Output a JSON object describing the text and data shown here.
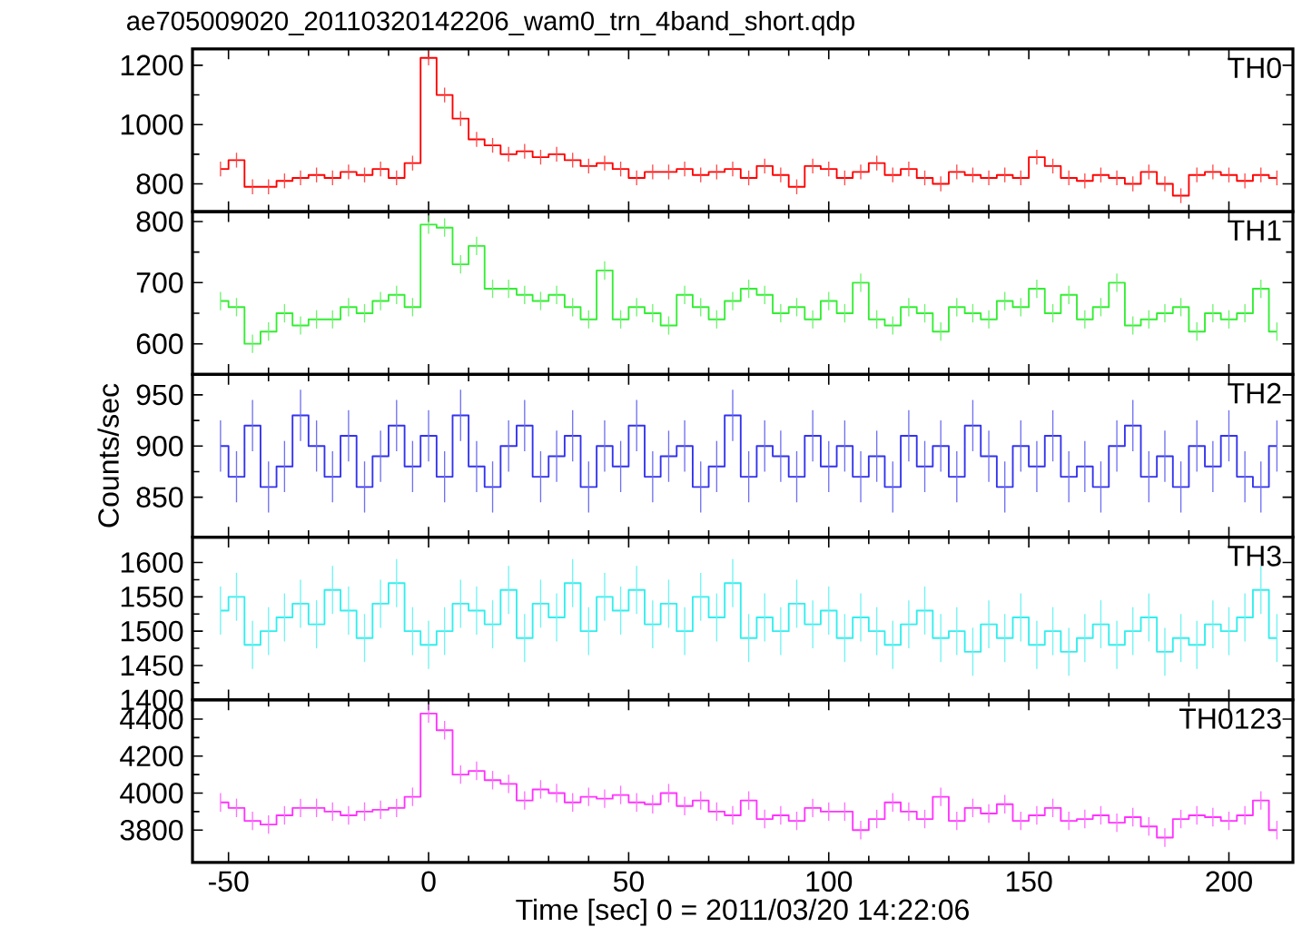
{
  "chart_data": [
    {
      "type": "step",
      "title": "ae705009020_20110320142206_wam0_trn_4band_short.qdp",
      "x": [
        -52,
        -48,
        -44,
        -40,
        -36,
        -32,
        -28,
        -24,
        -20,
        -16,
        -12,
        -8,
        -4,
        0,
        4,
        8,
        12,
        16,
        20,
        24,
        28,
        32,
        36,
        40,
        44,
        48,
        52,
        56,
        60,
        64,
        68,
        72,
        76,
        80,
        84,
        88,
        92,
        96,
        100,
        104,
        108,
        112,
        116,
        120,
        124,
        128,
        132,
        136,
        140,
        144,
        148,
        152,
        156,
        160,
        164,
        168,
        172,
        176,
        180,
        184,
        188,
        192,
        196,
        200,
        204,
        208,
        212
      ],
      "xlim": [
        -59,
        216
      ],
      "xticks": [
        -50,
        0,
        50,
        100,
        150,
        200
      ],
      "ylim": [
        706,
        1255
      ],
      "yticks": [
        800,
        1000,
        1200
      ],
      "tick_labels": "y",
      "series": [
        {
          "name": "TH0",
          "color": "#ff0000",
          "values": [
            850,
            880,
            790,
            790,
            810,
            820,
            830,
            820,
            840,
            830,
            850,
            820,
            870,
            1225,
            1100,
            1020,
            950,
            930,
            900,
            910,
            890,
            900,
            880,
            860,
            870,
            850,
            820,
            840,
            840,
            850,
            830,
            840,
            850,
            820,
            860,
            830,
            790,
            860,
            850,
            820,
            840,
            870,
            830,
            850,
            820,
            800,
            840,
            830,
            820,
            830,
            820,
            890,
            860,
            820,
            810,
            830,
            820,
            800,
            840,
            800,
            760,
            830,
            840,
            830,
            810,
            830,
            820
          ],
          "errors": [
            25,
            25,
            25,
            25,
            25,
            25,
            25,
            25,
            25,
            25,
            25,
            25,
            25,
            25,
            25,
            25,
            25,
            25,
            25,
            25,
            25,
            25,
            25,
            25,
            25,
            25,
            25,
            25,
            25,
            25,
            25,
            25,
            25,
            25,
            25,
            25,
            25,
            25,
            25,
            25,
            25,
            25,
            25,
            25,
            25,
            25,
            25,
            25,
            25,
            25,
            25,
            25,
            25,
            25,
            25,
            25,
            25,
            25,
            25,
            25,
            25,
            25,
            25,
            25,
            25,
            25,
            25
          ]
        }
      ]
    },
    {
      "type": "step",
      "x": [
        -52,
        -48,
        -44,
        -40,
        -36,
        -32,
        -28,
        -24,
        -20,
        -16,
        -12,
        -8,
        -4,
        0,
        4,
        8,
        12,
        16,
        20,
        24,
        28,
        32,
        36,
        40,
        44,
        48,
        52,
        56,
        60,
        64,
        68,
        72,
        76,
        80,
        84,
        88,
        92,
        96,
        100,
        104,
        108,
        112,
        116,
        120,
        124,
        128,
        132,
        136,
        140,
        144,
        148,
        152,
        156,
        160,
        164,
        168,
        172,
        176,
        180,
        184,
        188,
        192,
        196,
        200,
        204,
        208,
        212
      ],
      "xlim": [
        -59,
        216
      ],
      "xticks": [
        -50,
        0,
        50,
        100,
        150,
        200
      ],
      "ylim": [
        550,
        816
      ],
      "yticks": [
        600,
        700,
        800
      ],
      "tick_labels": "y",
      "series": [
        {
          "name": "TH1",
          "color": "#33ee33",
          "values": [
            670,
            660,
            600,
            620,
            650,
            630,
            640,
            640,
            660,
            650,
            670,
            680,
            660,
            795,
            790,
            730,
            760,
            690,
            690,
            680,
            670,
            680,
            660,
            640,
            720,
            640,
            660,
            650,
            630,
            680,
            660,
            640,
            670,
            690,
            680,
            650,
            660,
            640,
            670,
            650,
            700,
            640,
            630,
            660,
            650,
            620,
            660,
            650,
            640,
            670,
            660,
            690,
            650,
            680,
            640,
            660,
            700,
            630,
            640,
            650,
            660,
            620,
            650,
            640,
            650,
            690,
            620
          ],
          "errors": [
            15,
            15,
            15,
            15,
            15,
            15,
            15,
            15,
            15,
            15,
            15,
            15,
            15,
            15,
            15,
            15,
            15,
            15,
            15,
            15,
            15,
            15,
            15,
            15,
            15,
            15,
            15,
            15,
            15,
            15,
            15,
            15,
            15,
            15,
            15,
            15,
            15,
            15,
            15,
            15,
            15,
            15,
            15,
            15,
            15,
            15,
            15,
            15,
            15,
            15,
            15,
            15,
            15,
            15,
            15,
            15,
            15,
            15,
            15,
            15,
            15,
            15,
            15,
            15,
            15,
            15,
            15
          ]
        }
      ]
    },
    {
      "type": "step",
      "ylabel": "Counts/sec",
      "x": [
        -52,
        -48,
        -44,
        -40,
        -36,
        -32,
        -28,
        -24,
        -20,
        -16,
        -12,
        -8,
        -4,
        0,
        4,
        8,
        12,
        16,
        20,
        24,
        28,
        32,
        36,
        40,
        44,
        48,
        52,
        56,
        60,
        64,
        68,
        72,
        76,
        80,
        84,
        88,
        92,
        96,
        100,
        104,
        108,
        112,
        116,
        120,
        124,
        128,
        132,
        136,
        140,
        144,
        148,
        152,
        156,
        160,
        164,
        168,
        172,
        176,
        180,
        184,
        188,
        192,
        196,
        200,
        204,
        208,
        212
      ],
      "xlim": [
        -59,
        216
      ],
      "xticks": [
        -50,
        0,
        50,
        100,
        150,
        200
      ],
      "ylim": [
        811,
        970
      ],
      "yticks": [
        850,
        900,
        950
      ],
      "tick_labels": "y",
      "series": [
        {
          "name": "TH2",
          "color": "#3333ee",
          "values": [
            900,
            870,
            920,
            860,
            880,
            930,
            900,
            870,
            910,
            860,
            890,
            920,
            880,
            910,
            870,
            930,
            880,
            860,
            900,
            920,
            870,
            890,
            910,
            860,
            900,
            880,
            920,
            870,
            890,
            900,
            860,
            880,
            930,
            870,
            900,
            890,
            870,
            910,
            880,
            900,
            870,
            890,
            860,
            910,
            880,
            900,
            870,
            920,
            890,
            860,
            900,
            880,
            910,
            870,
            880,
            860,
            900,
            920,
            870,
            890,
            860,
            900,
            880,
            910,
            870,
            860,
            900
          ],
          "errors": [
            25,
            25,
            25,
            25,
            25,
            25,
            25,
            25,
            25,
            25,
            25,
            25,
            25,
            25,
            25,
            25,
            25,
            25,
            25,
            25,
            25,
            25,
            25,
            25,
            25,
            25,
            25,
            25,
            25,
            25,
            25,
            25,
            25,
            25,
            25,
            25,
            25,
            25,
            25,
            25,
            25,
            25,
            25,
            25,
            25,
            25,
            25,
            25,
            25,
            25,
            25,
            25,
            25,
            25,
            25,
            25,
            25,
            25,
            25,
            25,
            25,
            25,
            25,
            25,
            25,
            25,
            25
          ]
        }
      ]
    },
    {
      "type": "step",
      "x": [
        -52,
        -48,
        -44,
        -40,
        -36,
        -32,
        -28,
        -24,
        -20,
        -16,
        -12,
        -8,
        -4,
        0,
        4,
        8,
        12,
        16,
        20,
        24,
        28,
        32,
        36,
        40,
        44,
        48,
        52,
        56,
        60,
        64,
        68,
        72,
        76,
        80,
        84,
        88,
        92,
        96,
        100,
        104,
        108,
        112,
        116,
        120,
        124,
        128,
        132,
        136,
        140,
        144,
        148,
        152,
        156,
        160,
        164,
        168,
        172,
        176,
        180,
        184,
        188,
        192,
        196,
        200,
        204,
        208,
        212
      ],
      "xlim": [
        -59,
        216
      ],
      "xticks": [
        -50,
        0,
        50,
        100,
        150,
        200
      ],
      "ylim": [
        1400,
        1637
      ],
      "yticks": [
        1400,
        1450,
        1500,
        1550,
        1600
      ],
      "tick_labels": "y",
      "series": [
        {
          "name": "TH3",
          "color": "#33eeee",
          "values": [
            1530,
            1550,
            1480,
            1500,
            1520,
            1540,
            1510,
            1560,
            1530,
            1490,
            1540,
            1570,
            1500,
            1480,
            1500,
            1540,
            1530,
            1510,
            1560,
            1490,
            1540,
            1520,
            1570,
            1500,
            1550,
            1530,
            1560,
            1510,
            1540,
            1500,
            1550,
            1520,
            1570,
            1490,
            1520,
            1500,
            1540,
            1510,
            1530,
            1490,
            1520,
            1500,
            1480,
            1510,
            1530,
            1490,
            1500,
            1470,
            1510,
            1490,
            1520,
            1480,
            1500,
            1470,
            1490,
            1510,
            1480,
            1500,
            1520,
            1470,
            1490,
            1480,
            1510,
            1500,
            1520,
            1560,
            1490
          ],
          "errors": [
            35,
            35,
            35,
            35,
            35,
            35,
            35,
            35,
            35,
            35,
            35,
            35,
            35,
            35,
            35,
            35,
            35,
            35,
            35,
            35,
            35,
            35,
            35,
            35,
            35,
            35,
            35,
            35,
            35,
            35,
            35,
            35,
            35,
            35,
            35,
            35,
            35,
            35,
            35,
            35,
            35,
            35,
            35,
            35,
            35,
            35,
            35,
            35,
            35,
            35,
            35,
            35,
            35,
            35,
            35,
            35,
            35,
            35,
            35,
            35,
            35,
            35,
            35,
            35,
            35,
            35,
            35
          ]
        }
      ]
    },
    {
      "type": "step",
      "xlabel": "Time [sec] 0 = 2011/03/20 14:22:06",
      "x": [
        -52,
        -48,
        -44,
        -40,
        -36,
        -32,
        -28,
        -24,
        -20,
        -16,
        -12,
        -8,
        -4,
        0,
        4,
        8,
        12,
        16,
        20,
        24,
        28,
        32,
        36,
        40,
        44,
        48,
        52,
        56,
        60,
        64,
        68,
        72,
        76,
        80,
        84,
        88,
        92,
        96,
        100,
        104,
        108,
        112,
        116,
        120,
        124,
        128,
        132,
        136,
        140,
        144,
        148,
        152,
        156,
        160,
        164,
        168,
        172,
        176,
        180,
        184,
        188,
        192,
        196,
        200,
        204,
        208,
        212
      ],
      "xlim": [
        -59,
        216
      ],
      "xticks": [
        -50,
        0,
        50,
        100,
        150,
        200
      ],
      "ylim": [
        3625,
        4504
      ],
      "yticks": [
        3800,
        4000,
        4200,
        4400
      ],
      "series": [
        {
          "name": "TH0123",
          "color": "#ff33ff",
          "values": [
            3950,
            3920,
            3850,
            3830,
            3880,
            3920,
            3920,
            3900,
            3880,
            3900,
            3910,
            3920,
            3980,
            4430,
            4340,
            4100,
            4120,
            4070,
            4050,
            3960,
            4020,
            4000,
            3950,
            3980,
            3970,
            3990,
            3950,
            3940,
            4000,
            3930,
            3960,
            3900,
            3880,
            3960,
            3860,
            3880,
            3850,
            3920,
            3900,
            3900,
            3800,
            3860,
            3950,
            3900,
            3860,
            3980,
            3850,
            3920,
            3890,
            3940,
            3850,
            3880,
            3920,
            3850,
            3860,
            3880,
            3840,
            3870,
            3820,
            3760,
            3860,
            3880,
            3870,
            3850,
            3880,
            3960,
            3800
          ],
          "errors": [
            50,
            50,
            50,
            50,
            50,
            50,
            50,
            50,
            50,
            50,
            50,
            50,
            50,
            50,
            50,
            50,
            50,
            50,
            50,
            50,
            50,
            50,
            50,
            50,
            50,
            50,
            50,
            50,
            50,
            50,
            50,
            50,
            50,
            50,
            50,
            50,
            50,
            50,
            50,
            50,
            50,
            50,
            50,
            50,
            50,
            50,
            50,
            50,
            50,
            50,
            50,
            50,
            50,
            50,
            50,
            50,
            50,
            50,
            50,
            50,
            50,
            50,
            50,
            50,
            50,
            50,
            50
          ]
        }
      ]
    }
  ]
}
